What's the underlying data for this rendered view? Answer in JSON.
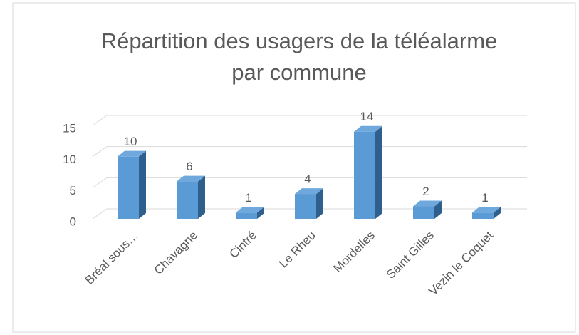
{
  "chart_data": {
    "type": "bar3d",
    "title": [
      "Répartition des usagers de la téléalarme",
      "par commune"
    ],
    "categories": [
      "Bréal sous…",
      "Chavagne",
      "Cintré",
      "Le Rheu",
      "Mordelles",
      "Saint Gilles",
      "Vezin le Coquet"
    ],
    "values": [
      10,
      6,
      1,
      4,
      14,
      2,
      1
    ],
    "color": "#5b9bd5",
    "side_color": "#2f5f8c",
    "top_color": "#6fa8dc",
    "ylim": [
      0,
      15
    ],
    "yticks": [
      0,
      5,
      10,
      15
    ],
    "grid": true
  }
}
